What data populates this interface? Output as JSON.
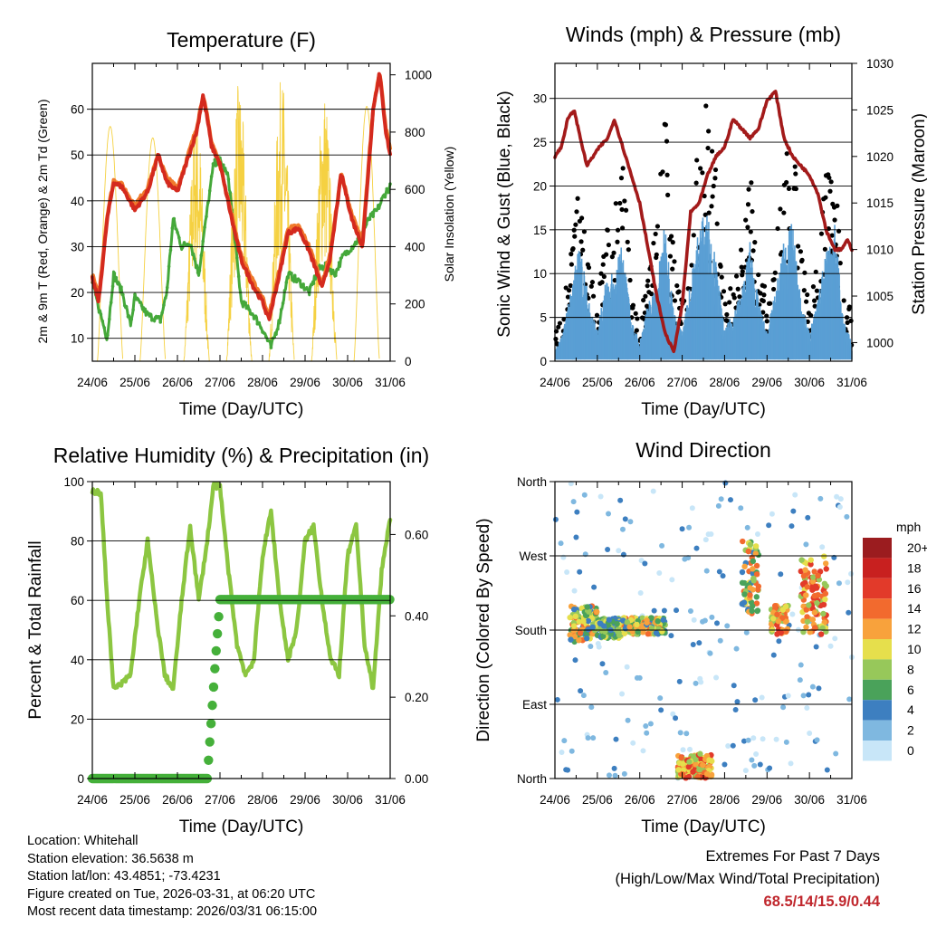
{
  "colors": {
    "temp_red": "#d42a1e",
    "temp_orange": "#f07a2c",
    "dewpoint_green": "#45a83a",
    "solar_yellow": "#f5d142",
    "gust_black": "#000000",
    "wind_blue": "#5a9fd4",
    "pressure_maroon": "#a31a1a",
    "rh_lightgreen": "#8cc641",
    "rain_green": "#45b03a",
    "extremes": "#c0272d"
  },
  "x_ticks": [
    "24/06",
    "25/06",
    "26/06",
    "27/06",
    "28/06",
    "29/06",
    "30/06",
    "31/06"
  ],
  "chart_data": [
    {
      "type": "line",
      "title": "Temperature (F)",
      "xlabel": "Time (Day/UTC)",
      "ylabel": "2m & 9m T (Red, Orange) & 2m Td (Green)",
      "ylabel_right": "Solar Insolation (Yellow)",
      "xlim": [
        0,
        7
      ],
      "ylim": [
        5,
        70
      ],
      "ylim_right": [
        0,
        1040
      ],
      "yticks": [
        10,
        20,
        30,
        40,
        50,
        60
      ],
      "yticks_right": [
        0,
        200,
        400,
        600,
        800,
        1000
      ],
      "series": [
        {
          "name": "2m T",
          "color": "temp_red",
          "x": [
            0,
            0.15,
            0.35,
            0.5,
            0.7,
            1.0,
            1.3,
            1.55,
            1.75,
            2.0,
            2.2,
            2.45,
            2.6,
            2.7,
            2.8,
            3.0,
            3.3,
            3.5,
            3.8,
            4.0,
            4.15,
            4.4,
            4.6,
            4.85,
            5.1,
            5.4,
            5.6,
            5.85,
            6.1,
            6.35,
            6.5,
            6.6,
            6.75,
            6.9,
            7.0
          ],
          "y": [
            23,
            18,
            36,
            44,
            43,
            38,
            42,
            50,
            44,
            42,
            48,
            55,
            63,
            58,
            52,
            48,
            35,
            27,
            21,
            18,
            14,
            24,
            33,
            34,
            29,
            21,
            28,
            46,
            36,
            30,
            48,
            60,
            68,
            55,
            50
          ]
        },
        {
          "name": "9m T",
          "color": "temp_orange",
          "x": [
            0,
            0.15,
            0.35,
            0.5,
            0.7,
            1.0,
            1.3,
            1.55,
            1.75,
            2.0,
            2.2,
            2.45,
            2.6,
            2.7,
            2.8,
            3.0,
            3.3,
            3.5,
            3.8,
            4.0,
            4.15,
            4.4,
            4.6,
            4.85,
            5.1,
            5.4,
            5.6,
            5.85,
            6.1,
            6.35,
            6.5,
            6.6,
            6.75,
            6.9,
            7.0
          ],
          "y": [
            24,
            19,
            37,
            44.5,
            43.5,
            39,
            43,
            50,
            45,
            43,
            48.5,
            56,
            63,
            58.5,
            53,
            48,
            36,
            28,
            22,
            19,
            15,
            25,
            34,
            34.5,
            30,
            22,
            29,
            46,
            37,
            31,
            49,
            60,
            68.5,
            56,
            51
          ]
        },
        {
          "name": "2m Td",
          "color": "dewpoint_green",
          "x": [
            0,
            0.2,
            0.35,
            0.5,
            0.7,
            0.9,
            1.0,
            1.3,
            1.6,
            1.75,
            1.9,
            2.1,
            2.3,
            2.5,
            2.7,
            2.85,
            3.0,
            3.2,
            3.5,
            3.8,
            4.0,
            4.2,
            4.4,
            4.6,
            4.9,
            5.1,
            5.3,
            5.5,
            5.7,
            5.9,
            6.1,
            6.3,
            6.5,
            6.7,
            6.9,
            7.0
          ],
          "y": [
            22,
            15,
            10,
            24,
            20,
            13,
            19,
            15,
            14,
            20,
            36,
            30,
            31,
            24,
            38,
            48,
            49,
            45,
            18,
            15,
            12,
            8,
            14,
            24,
            22,
            20,
            25,
            26,
            24,
            28,
            30,
            32,
            36,
            38,
            42,
            43
          ]
        },
        {
          "name": "Solar Insolation",
          "axis": "right",
          "color": "solar_yellow",
          "peaks": [
            {
              "day": 0.42,
              "value": 820
            },
            {
              "day": 1.42,
              "value": 780
            },
            {
              "day": 2.45,
              "value": 880
            },
            {
              "day": 3.45,
              "value": 980
            },
            {
              "day": 4.45,
              "value": 1000
            },
            {
              "day": 5.45,
              "value": 960
            },
            {
              "day": 6.45,
              "value": 890
            }
          ]
        }
      ]
    },
    {
      "type": "scatter",
      "title": "Winds (mph) & Pressure (mb)",
      "xlabel": "Time (Day/UTC)",
      "ylabel": "Sonic Wind & Gust (Blue, Black)",
      "ylabel_right": "Station Pressure (Maroon)",
      "xlim": [
        0,
        7
      ],
      "ylim": [
        0,
        34
      ],
      "ylim_right": [
        998,
        1030
      ],
      "yticks": [
        0,
        5,
        10,
        15,
        20,
        25,
        30
      ],
      "yticks_right": [
        1000,
        1005,
        1010,
        1015,
        1020,
        1025,
        1030
      ],
      "series": [
        {
          "name": "Sonic Wind",
          "color": "wind_blue",
          "kind": "band",
          "x": [
            0,
            0.2,
            0.4,
            0.6,
            0.8,
            1.0,
            1.2,
            1.4,
            1.6,
            1.8,
            2.0,
            2.2,
            2.4,
            2.6,
            2.8,
            3.0,
            3.2,
            3.4,
            3.6,
            3.8,
            4.0,
            4.2,
            4.4,
            4.6,
            4.8,
            5.0,
            5.2,
            5.4,
            5.6,
            5.8,
            6.0,
            6.2,
            6.4,
            6.6,
            6.8,
            7.0
          ],
          "y": [
            1,
            3,
            8,
            12,
            6,
            3,
            8,
            9,
            12,
            4,
            2,
            6,
            8,
            14,
            5,
            3,
            8,
            14,
            15,
            10,
            3,
            5,
            7,
            12,
            6,
            3,
            7,
            12,
            14,
            6,
            3,
            6,
            12,
            14,
            4,
            2
          ]
        },
        {
          "name": "Gust",
          "color": "gust_black",
          "kind": "points",
          "x": [
            0,
            0.2,
            0.4,
            0.6,
            0.8,
            1.0,
            1.2,
            1.4,
            1.6,
            1.8,
            2.0,
            2.2,
            2.4,
            2.6,
            2.8,
            3.0,
            3.2,
            3.4,
            3.6,
            3.8,
            4.0,
            4.2,
            4.4,
            4.6,
            4.8,
            5.0,
            5.2,
            5.4,
            5.6,
            5.8,
            6.0,
            6.2,
            6.4,
            6.6,
            6.8,
            7.0
          ],
          "y": [
            3,
            6,
            14,
            20,
            10,
            6,
            14,
            17,
            22,
            8,
            4,
            10,
            15,
            27,
            12,
            6,
            14,
            26,
            30,
            20,
            6,
            9,
            13,
            22,
            12,
            6,
            12,
            20,
            25,
            13,
            6,
            11,
            20,
            24,
            8,
            5
          ]
        },
        {
          "name": "Station Pressure",
          "axis": "right",
          "color": "pressure_maroon",
          "kind": "line",
          "x": [
            0,
            0.15,
            0.3,
            0.45,
            0.6,
            0.75,
            0.9,
            1.05,
            1.25,
            1.4,
            1.6,
            1.8,
            2.0,
            2.2,
            2.4,
            2.6,
            2.8,
            3.0,
            3.2,
            3.4,
            3.6,
            3.8,
            4.0,
            4.2,
            4.4,
            4.6,
            4.8,
            5.0,
            5.2,
            5.4,
            5.6,
            5.8,
            6.0,
            6.2,
            6.4,
            6.6,
            6.75,
            6.9,
            7.0
          ],
          "y": [
            1020,
            1021,
            1024,
            1025,
            1022,
            1019,
            1020,
            1021,
            1022,
            1024,
            1021,
            1018,
            1015,
            1010,
            1005,
            1001,
            999,
            1004,
            1014,
            1015,
            1018,
            1020,
            1021,
            1024,
            1023,
            1022,
            1023,
            1026,
            1027,
            1022,
            1020,
            1019,
            1018,
            1016,
            1012,
            1010,
            1010,
            1011,
            1010
          ]
        }
      ]
    },
    {
      "type": "line",
      "title": "Relative Humidity (%) & Precipitation (in)",
      "xlabel": "Time (Day/UTC)",
      "ylabel": "Percent & Total Rainfall",
      "xlim": [
        0,
        7
      ],
      "ylim": [
        0,
        100
      ],
      "ylim_right": [
        0,
        0.73
      ],
      "yticks": [
        0,
        20,
        40,
        60,
        80,
        100
      ],
      "yticks_right": [
        "0.00",
        "0.20",
        "0.40",
        "0.60"
      ],
      "series": [
        {
          "name": "Relative Humidity",
          "color": "rh_lightgreen",
          "x": [
            0,
            0.2,
            0.35,
            0.5,
            0.7,
            0.9,
            1.1,
            1.3,
            1.5,
            1.7,
            1.9,
            2.1,
            2.3,
            2.5,
            2.7,
            2.85,
            3.0,
            3.2,
            3.4,
            3.6,
            3.8,
            4.0,
            4.2,
            4.4,
            4.6,
            4.8,
            5.0,
            5.2,
            5.4,
            5.6,
            5.8,
            6.0,
            6.2,
            6.4,
            6.6,
            6.8,
            7.0
          ],
          "y": [
            97,
            96,
            60,
            30,
            32,
            35,
            60,
            80,
            55,
            35,
            30,
            60,
            85,
            60,
            80,
            99,
            98,
            70,
            45,
            35,
            40,
            75,
            90,
            60,
            40,
            50,
            80,
            85,
            60,
            40,
            35,
            75,
            85,
            45,
            30,
            70,
            88
          ]
        },
        {
          "name": "Total Precipitation",
          "axis": "right",
          "color": "rain_green",
          "x": [
            0,
            2.7,
            2.8,
            2.9,
            3.0,
            7.0
          ],
          "y": [
            0,
            0,
            0.15,
            0.3,
            0.44,
            0.44
          ]
        }
      ]
    },
    {
      "type": "scatter",
      "title": "Wind Direction",
      "xlabel": "Time (Day/UTC)",
      "ylabel": "Direction (Colored By Speed)",
      "xlim": [
        0,
        7
      ],
      "yticks": [
        "North",
        "East",
        "South",
        "West",
        "North"
      ],
      "ytick_degrees": [
        0,
        90,
        180,
        270,
        360
      ],
      "legend_title": "mph",
      "legend_labels": [
        "20+",
        "18",
        "16",
        "14",
        "12",
        "10",
        "8",
        "6",
        "4",
        "2",
        "0"
      ],
      "legend_colors": [
        "#9b1c1f",
        "#c8201f",
        "#e23a2a",
        "#f26a2e",
        "#f8a23c",
        "#e6df4c",
        "#97c85a",
        "#4aa25a",
        "#3d7fc0",
        "#7fb8e0",
        "#c8e6f8"
      ],
      "clusters": [
        {
          "day_start": 0.35,
          "day_end": 1.0,
          "dir_min": 165,
          "dir_max": 210,
          "speed": "mixed-high"
        },
        {
          "day_start": 1.0,
          "day_end": 1.6,
          "dir_min": 170,
          "dir_max": 195,
          "speed": "mixed"
        },
        {
          "day_start": 1.6,
          "day_end": 2.6,
          "dir_min": 175,
          "dir_max": 195,
          "speed": "mixed-high"
        },
        {
          "day_start": 2.9,
          "day_end": 3.7,
          "dir_min": 0,
          "dir_max": 30,
          "speed": "high"
        },
        {
          "day_start": 4.4,
          "day_end": 4.8,
          "dir_min": 200,
          "dir_max": 290,
          "speed": "mixed-high"
        },
        {
          "day_start": 5.1,
          "day_end": 5.5,
          "dir_min": 175,
          "dir_max": 210,
          "speed": "high"
        },
        {
          "day_start": 5.8,
          "day_end": 6.4,
          "dir_min": 175,
          "dir_max": 270,
          "speed": "high"
        }
      ]
    }
  ],
  "info": {
    "location": "Location: Whitehall",
    "elevation": "Station elevation: 36.5638 m",
    "latlon": "Station lat/lon: 43.4851; -73.4231",
    "created": "Figure created on Tue, 2026-03-31, at 06:20 UTC",
    "recent": "Most recent data timestamp: 2026/03/31 06:15:00"
  },
  "extremes": {
    "heading": "Extremes For Past 7 Days",
    "subheading": "(High/Low/Max Wind/Total Precipitation)",
    "values": "68.5/14/15.9/0.44"
  }
}
